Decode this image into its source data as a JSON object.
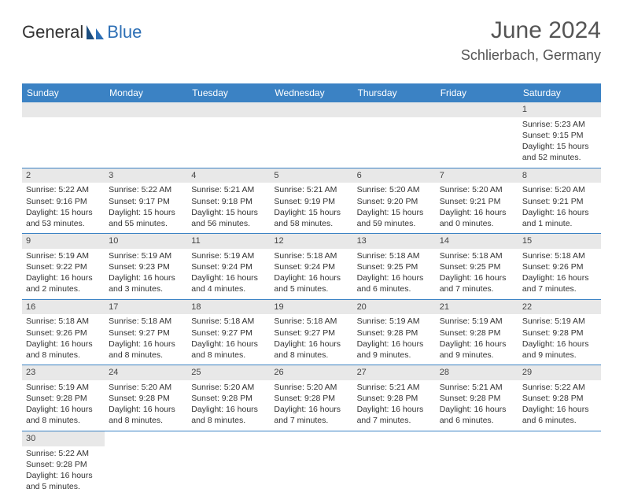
{
  "logo": {
    "text1": "General",
    "text2": "Blue"
  },
  "header": {
    "month": "June 2024",
    "location": "Schlierbach, Germany"
  },
  "colors": {
    "header_bg": "#3b82c4",
    "header_text": "#ffffff",
    "daynum_bg": "#e8e8e8",
    "row_border": "#3b82c4",
    "text": "#333333"
  },
  "weekdays": [
    "Sunday",
    "Monday",
    "Tuesday",
    "Wednesday",
    "Thursday",
    "Friday",
    "Saturday"
  ],
  "weeks": [
    [
      {
        "num": "",
        "lines": []
      },
      {
        "num": "",
        "lines": []
      },
      {
        "num": "",
        "lines": []
      },
      {
        "num": "",
        "lines": []
      },
      {
        "num": "",
        "lines": []
      },
      {
        "num": "",
        "lines": []
      },
      {
        "num": "1",
        "lines": [
          "Sunrise: 5:23 AM",
          "Sunset: 9:15 PM",
          "Daylight: 15 hours and 52 minutes."
        ]
      }
    ],
    [
      {
        "num": "2",
        "lines": [
          "Sunrise: 5:22 AM",
          "Sunset: 9:16 PM",
          "Daylight: 15 hours and 53 minutes."
        ]
      },
      {
        "num": "3",
        "lines": [
          "Sunrise: 5:22 AM",
          "Sunset: 9:17 PM",
          "Daylight: 15 hours and 55 minutes."
        ]
      },
      {
        "num": "4",
        "lines": [
          "Sunrise: 5:21 AM",
          "Sunset: 9:18 PM",
          "Daylight: 15 hours and 56 minutes."
        ]
      },
      {
        "num": "5",
        "lines": [
          "Sunrise: 5:21 AM",
          "Sunset: 9:19 PM",
          "Daylight: 15 hours and 58 minutes."
        ]
      },
      {
        "num": "6",
        "lines": [
          "Sunrise: 5:20 AM",
          "Sunset: 9:20 PM",
          "Daylight: 15 hours and 59 minutes."
        ]
      },
      {
        "num": "7",
        "lines": [
          "Sunrise: 5:20 AM",
          "Sunset: 9:21 PM",
          "Daylight: 16 hours and 0 minutes."
        ]
      },
      {
        "num": "8",
        "lines": [
          "Sunrise: 5:20 AM",
          "Sunset: 9:21 PM",
          "Daylight: 16 hours and 1 minute."
        ]
      }
    ],
    [
      {
        "num": "9",
        "lines": [
          "Sunrise: 5:19 AM",
          "Sunset: 9:22 PM",
          "Daylight: 16 hours and 2 minutes."
        ]
      },
      {
        "num": "10",
        "lines": [
          "Sunrise: 5:19 AM",
          "Sunset: 9:23 PM",
          "Daylight: 16 hours and 3 minutes."
        ]
      },
      {
        "num": "11",
        "lines": [
          "Sunrise: 5:19 AM",
          "Sunset: 9:24 PM",
          "Daylight: 16 hours and 4 minutes."
        ]
      },
      {
        "num": "12",
        "lines": [
          "Sunrise: 5:18 AM",
          "Sunset: 9:24 PM",
          "Daylight: 16 hours and 5 minutes."
        ]
      },
      {
        "num": "13",
        "lines": [
          "Sunrise: 5:18 AM",
          "Sunset: 9:25 PM",
          "Daylight: 16 hours and 6 minutes."
        ]
      },
      {
        "num": "14",
        "lines": [
          "Sunrise: 5:18 AM",
          "Sunset: 9:25 PM",
          "Daylight: 16 hours and 7 minutes."
        ]
      },
      {
        "num": "15",
        "lines": [
          "Sunrise: 5:18 AM",
          "Sunset: 9:26 PM",
          "Daylight: 16 hours and 7 minutes."
        ]
      }
    ],
    [
      {
        "num": "16",
        "lines": [
          "Sunrise: 5:18 AM",
          "Sunset: 9:26 PM",
          "Daylight: 16 hours and 8 minutes."
        ]
      },
      {
        "num": "17",
        "lines": [
          "Sunrise: 5:18 AM",
          "Sunset: 9:27 PM",
          "Daylight: 16 hours and 8 minutes."
        ]
      },
      {
        "num": "18",
        "lines": [
          "Sunrise: 5:18 AM",
          "Sunset: 9:27 PM",
          "Daylight: 16 hours and 8 minutes."
        ]
      },
      {
        "num": "19",
        "lines": [
          "Sunrise: 5:18 AM",
          "Sunset: 9:27 PM",
          "Daylight: 16 hours and 8 minutes."
        ]
      },
      {
        "num": "20",
        "lines": [
          "Sunrise: 5:19 AM",
          "Sunset: 9:28 PM",
          "Daylight: 16 hours and 9 minutes."
        ]
      },
      {
        "num": "21",
        "lines": [
          "Sunrise: 5:19 AM",
          "Sunset: 9:28 PM",
          "Daylight: 16 hours and 9 minutes."
        ]
      },
      {
        "num": "22",
        "lines": [
          "Sunrise: 5:19 AM",
          "Sunset: 9:28 PM",
          "Daylight: 16 hours and 9 minutes."
        ]
      }
    ],
    [
      {
        "num": "23",
        "lines": [
          "Sunrise: 5:19 AM",
          "Sunset: 9:28 PM",
          "Daylight: 16 hours and 8 minutes."
        ]
      },
      {
        "num": "24",
        "lines": [
          "Sunrise: 5:20 AM",
          "Sunset: 9:28 PM",
          "Daylight: 16 hours and 8 minutes."
        ]
      },
      {
        "num": "25",
        "lines": [
          "Sunrise: 5:20 AM",
          "Sunset: 9:28 PM",
          "Daylight: 16 hours and 8 minutes."
        ]
      },
      {
        "num": "26",
        "lines": [
          "Sunrise: 5:20 AM",
          "Sunset: 9:28 PM",
          "Daylight: 16 hours and 7 minutes."
        ]
      },
      {
        "num": "27",
        "lines": [
          "Sunrise: 5:21 AM",
          "Sunset: 9:28 PM",
          "Daylight: 16 hours and 7 minutes."
        ]
      },
      {
        "num": "28",
        "lines": [
          "Sunrise: 5:21 AM",
          "Sunset: 9:28 PM",
          "Daylight: 16 hours and 6 minutes."
        ]
      },
      {
        "num": "29",
        "lines": [
          "Sunrise: 5:22 AM",
          "Sunset: 9:28 PM",
          "Daylight: 16 hours and 6 minutes."
        ]
      }
    ],
    [
      {
        "num": "30",
        "lines": [
          "Sunrise: 5:22 AM",
          "Sunset: 9:28 PM",
          "Daylight: 16 hours and 5 minutes."
        ]
      },
      {
        "num": "",
        "lines": []
      },
      {
        "num": "",
        "lines": []
      },
      {
        "num": "",
        "lines": []
      },
      {
        "num": "",
        "lines": []
      },
      {
        "num": "",
        "lines": []
      },
      {
        "num": "",
        "lines": []
      }
    ]
  ]
}
